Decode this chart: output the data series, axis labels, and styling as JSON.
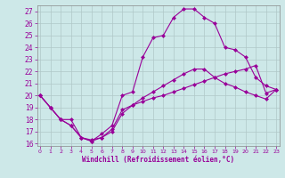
{
  "xlabel": "Windchill (Refroidissement éolien,°C)",
  "bg_color": "#cde8e8",
  "line_color": "#990099",
  "grid_color": "#b0c8c8",
  "ylim": [
    15.8,
    27.5
  ],
  "xlim": [
    -0.3,
    23.3
  ],
  "yticks": [
    16,
    17,
    18,
    19,
    20,
    21,
    22,
    23,
    24,
    25,
    26,
    27
  ],
  "xticks": [
    0,
    1,
    2,
    3,
    4,
    5,
    6,
    7,
    8,
    9,
    10,
    11,
    12,
    13,
    14,
    15,
    16,
    17,
    18,
    19,
    20,
    21,
    22,
    23
  ],
  "line1_x": [
    0,
    1,
    2,
    3,
    4,
    5,
    6,
    7,
    8,
    9,
    10,
    11,
    12,
    13,
    14,
    15,
    16,
    17,
    18,
    19,
    20,
    21,
    22,
    23
  ],
  "line1_y": [
    20,
    19,
    18,
    18,
    16.5,
    16.3,
    16.5,
    17.2,
    18.8,
    19.2,
    19.5,
    19.8,
    20.0,
    20.3,
    20.6,
    20.9,
    21.2,
    21.5,
    21.8,
    22.0,
    22.2,
    22.5,
    20.2,
    20.5
  ],
  "line2_x": [
    0,
    1,
    2,
    3,
    4,
    5,
    6,
    7,
    8,
    9,
    10,
    11,
    12,
    13,
    14,
    15,
    16,
    17,
    18,
    19,
    20,
    21,
    22,
    23
  ],
  "line2_y": [
    20,
    19,
    18,
    17.5,
    16.5,
    16.2,
    16.5,
    17.0,
    18.5,
    19.2,
    19.8,
    20.3,
    20.8,
    21.3,
    21.8,
    22.2,
    22.2,
    21.5,
    21.0,
    20.7,
    20.3,
    20.0,
    19.7,
    20.5
  ],
  "line3_x": [
    0,
    1,
    2,
    3,
    4,
    5,
    6,
    7,
    8,
    9,
    10,
    11,
    12,
    13,
    14,
    15,
    16,
    17,
    18,
    19,
    20,
    21,
    22,
    23
  ],
  "line3_y": [
    20,
    19,
    18,
    17.5,
    16.5,
    16.2,
    16.8,
    17.5,
    20.0,
    20.3,
    23.2,
    24.8,
    25.0,
    26.5,
    27.2,
    27.2,
    26.5,
    26.0,
    24.0,
    23.8,
    23.2,
    21.5,
    20.8,
    20.5
  ]
}
